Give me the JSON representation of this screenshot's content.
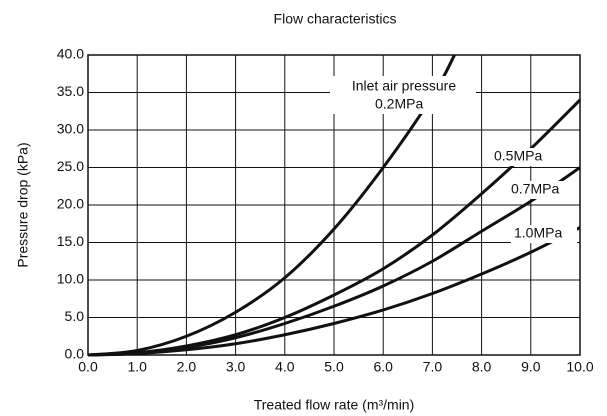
{
  "chart_data": {
    "type": "line",
    "title": "Flow characteristics",
    "xlabel": "Treated flow rate (m³/min)",
    "ylabel": "Pressure drop (kPa)",
    "annotation": "Inlet air pressure",
    "series": [
      {
        "name": "0.2MPa",
        "color": "#111111",
        "x": [
          0,
          1,
          2,
          3,
          4,
          5,
          6,
          7,
          7.45
        ],
        "values": [
          0,
          0.6,
          2.5,
          5.7,
          10.3,
          16.8,
          25,
          34.5,
          40
        ]
      },
      {
        "name": "0.5MPa",
        "color": "#111111",
        "x": [
          0,
          1,
          2,
          3,
          4,
          5,
          6,
          7,
          8,
          9,
          10
        ],
        "values": [
          0,
          0.3,
          1.2,
          2.7,
          5,
          8,
          11.5,
          16,
          21.5,
          27.5,
          34
        ]
      },
      {
        "name": "0.7MPa",
        "color": "#111111",
        "x": [
          0,
          1,
          2,
          3,
          4,
          5,
          6,
          7,
          8,
          9,
          10
        ],
        "values": [
          0,
          0.2,
          1,
          2.3,
          4.2,
          6.5,
          9.2,
          12.5,
          16.5,
          20.5,
          25
        ]
      },
      {
        "name": "1.0MPa",
        "color": "#111111",
        "x": [
          0,
          1,
          2,
          3,
          4,
          5,
          6,
          7,
          8,
          9,
          10
        ],
        "values": [
          0,
          0.2,
          0.7,
          1.5,
          2.7,
          4.2,
          6,
          8.2,
          10.8,
          13.7,
          17
        ]
      }
    ],
    "xlim": [
      0,
      10
    ],
    "ylim": [
      0,
      40
    ],
    "xticks": [
      {
        "value": 0,
        "label": "0.0"
      },
      {
        "value": 1,
        "label": "1.0"
      },
      {
        "value": 2,
        "label": "2.0"
      },
      {
        "value": 3,
        "label": "3.0"
      },
      {
        "value": 4,
        "label": "4.0"
      },
      {
        "value": 5,
        "label": "5.0"
      },
      {
        "value": 6,
        "label": "6.0"
      },
      {
        "value": 7,
        "label": "7.0"
      },
      {
        "value": 8,
        "label": "8.0"
      },
      {
        "value": 9,
        "label": "9.0"
      },
      {
        "value": 10,
        "label": "10.0"
      }
    ],
    "yticks": [
      {
        "value": 0,
        "label": "0.0"
      },
      {
        "value": 5,
        "label": "5.0"
      },
      {
        "value": 10,
        "label": "10.0"
      },
      {
        "value": 15,
        "label": "15.0"
      },
      {
        "value": 20,
        "label": "20.0"
      },
      {
        "value": 25,
        "label": "25.0"
      },
      {
        "value": 30,
        "label": "30.0"
      },
      {
        "value": 35,
        "label": "35.0"
      },
      {
        "value": 40,
        "label": "40.0"
      }
    ],
    "grid": true
  }
}
